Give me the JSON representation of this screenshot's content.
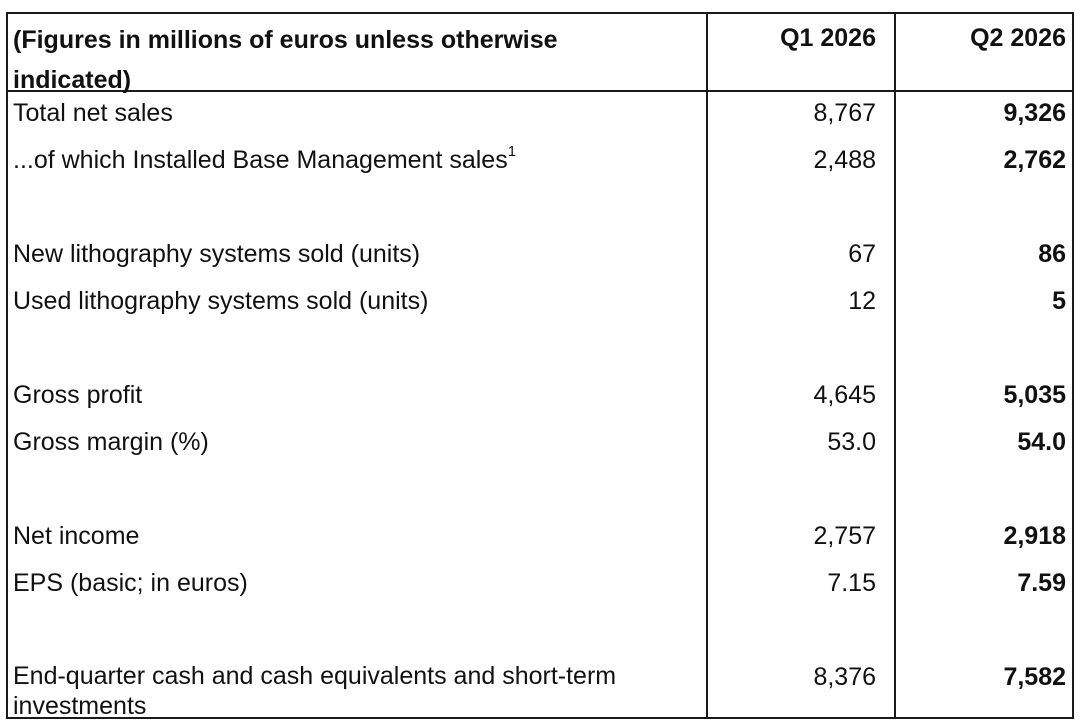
{
  "header": {
    "label": "(Figures in millions of euros unless otherwise indicated)",
    "q1": "Q1 2026",
    "q2": "Q2 2026"
  },
  "rows": [
    {
      "label": "Total net sales",
      "q1": "8,767",
      "q2": "9,326"
    },
    {
      "label": "...of which Installed Base Management sales",
      "footnote": "1",
      "q1": "2,488",
      "q2": "2,762"
    },
    {
      "label": "New lithography systems sold (units)",
      "q1": "67",
      "q2": "86"
    },
    {
      "label": "Used lithography systems sold (units)",
      "q1": "12",
      "q2": "5"
    },
    {
      "label": "Gross profit",
      "q1": "4,645",
      "q2": "5,035"
    },
    {
      "label": "Gross margin (%)",
      "q1": "53.0",
      "q2": "54.0"
    },
    {
      "label": "Net income",
      "q1": "2,757",
      "q2": "2,918"
    },
    {
      "label": "EPS (basic; in euros)",
      "q1": "7.15",
      "q2": "7.59"
    },
    {
      "label": "End-quarter cash and cash equivalents and short-term investments",
      "q1": "8,376",
      "q2": "7,582"
    }
  ]
}
